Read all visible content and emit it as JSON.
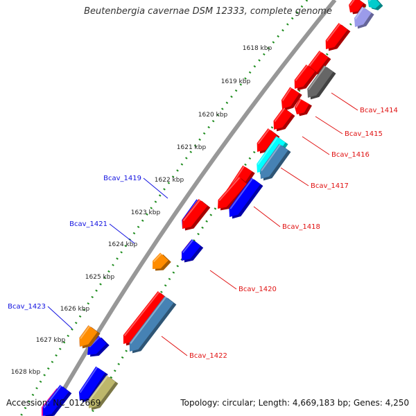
{
  "title": "Beutenbergia cavernae DSM 12333, complete genome",
  "footer": {
    "accession": "Accession: NC_012669",
    "topology": "Topology: circular; Length: 4,669,183 bp; Genes: 4,250"
  },
  "colors": {
    "backbone": "#8a8a8a",
    "ruler_dots": "#1e8c1e",
    "ruler_text": "#222222",
    "forward_label": "#1010e0",
    "reverse_label": "#e01010"
  },
  "ruler": {
    "unit": "kbp",
    "ticks": [
      "1618 kbp",
      "1619 kbp",
      "1620 kbp",
      "1621 kbp",
      "1622 kbp",
      "1623 kbp",
      "1624 kbp",
      "1625 kbp",
      "1626 kbp",
      "1627 kbp",
      "1628 kbp"
    ]
  },
  "features": [
    {
      "strand": "reverse",
      "color": "#ff0000",
      "label": ""
    },
    {
      "strand": "reverse",
      "color": "#ff0000",
      "label": ""
    },
    {
      "strand": "reverse",
      "color": "#ff0000",
      "label": ""
    },
    {
      "strand": "reverse",
      "color": "#ff0000",
      "label": ""
    },
    {
      "strand": "reverse",
      "color": "#ff0000",
      "label": ""
    },
    {
      "strand": "reverse",
      "color": "#ff0000",
      "label": ""
    },
    {
      "strand": "reverse",
      "color": "#ff0000",
      "label": ""
    },
    {
      "strand": "reverse",
      "color": "#ff0000",
      "label": ""
    },
    {
      "strand": "reverse",
      "color": "#ff0000",
      "label": ""
    },
    {
      "strand": "reverse",
      "color": "#ff0000",
      "label": ""
    },
    {
      "strand": "reverse",
      "color": "#ff0000",
      "label": ""
    },
    {
      "strand": "forward",
      "color": "#0000ff",
      "label": ""
    },
    {
      "strand": "forward",
      "color": "#0000ff",
      "label": ""
    },
    {
      "strand": "forward",
      "color": "#ff8c00",
      "label": ""
    },
    {
      "strand": "forward",
      "color": "#0000ff",
      "label": ""
    },
    {
      "strand": "forward",
      "color": "#0000ff",
      "label": ""
    },
    {
      "strand": "reverse",
      "color": "#ff1493",
      "label": ""
    },
    {
      "strand": "reverse",
      "color": "#9b9bea",
      "label": ""
    },
    {
      "strand": "reverse",
      "color": "#00cccc",
      "label": "Bcav_1414"
    },
    {
      "strand": "reverse",
      "color": "#666666",
      "label": "Bcav_1415"
    },
    {
      "strand": "reverse",
      "color": "#ff0000",
      "label": "Bcav_1416"
    },
    {
      "strand": "reverse",
      "color": "#00ffff",
      "label": "Bcav_1417"
    },
    {
      "strand": "reverse",
      "color": "#4682b4",
      "label": ""
    },
    {
      "strand": "reverse",
      "color": "#0000ff",
      "label": "Bcav_1418"
    },
    {
      "strand": "reverse",
      "color": "#4682b4",
      "label": "Bcav_1422"
    },
    {
      "strand": "reverse",
      "color": "#bdb76b",
      "label": ""
    },
    {
      "strand": "forward",
      "color": "#0000ff",
      "label": "Bcav_1419"
    },
    {
      "strand": "reverse",
      "color": "#ff0000",
      "label": "Bcav_1420"
    },
    {
      "strand": "forward",
      "color": "#0000ff",
      "label": "Bcav_1421"
    },
    {
      "strand": "forward",
      "color": "#ff8c00",
      "label": "Bcav_1423"
    }
  ]
}
